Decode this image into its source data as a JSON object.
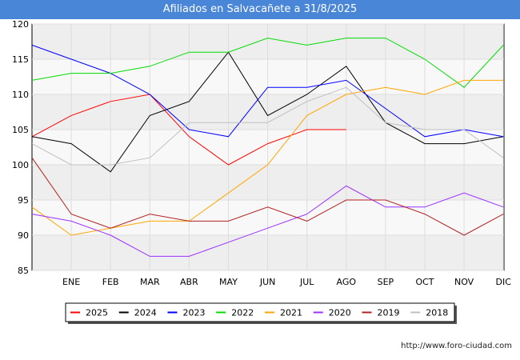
{
  "chart_data": {
    "type": "line",
    "title": "Afiliados en Salvacañete a 31/8/2025",
    "categories": [
      "",
      "ENE",
      "FEB",
      "MAR",
      "ABR",
      "MAY",
      "JUN",
      "JUL",
      "AGO",
      "SEP",
      "OCT",
      "NOV",
      "DIC"
    ],
    "ylim": [
      85,
      120
    ],
    "yticks": [
      85,
      90,
      95,
      100,
      105,
      110,
      115,
      120
    ],
    "grid": true,
    "legend_position": "bottom",
    "series": [
      {
        "name": "2025",
        "color": "#ff0000",
        "values": [
          104,
          107,
          109,
          110,
          104,
          100,
          103,
          105,
          105,
          null,
          null,
          null,
          null
        ]
      },
      {
        "name": "2024",
        "color": "#000000",
        "values": [
          104,
          103,
          99,
          107,
          109,
          116,
          107,
          110,
          114,
          106,
          103,
          103,
          104
        ]
      },
      {
        "name": "2023",
        "color": "#0000ff",
        "values": [
          117,
          115,
          113,
          110,
          105,
          104,
          111,
          111,
          112,
          108,
          104,
          105,
          104
        ]
      },
      {
        "name": "2022",
        "color": "#00dd00",
        "values": [
          112,
          113,
          113,
          114,
          116,
          116,
          118,
          117,
          118,
          118,
          115,
          111,
          117
        ]
      },
      {
        "name": "2021",
        "color": "#ffa500",
        "values": [
          94,
          90,
          91,
          92,
          92,
          96,
          100,
          107,
          110,
          111,
          110,
          112,
          112
        ]
      },
      {
        "name": "2020",
        "color": "#9b30ff",
        "values": [
          93,
          92,
          90,
          87,
          87,
          89,
          91,
          93,
          97,
          94,
          94,
          96,
          94
        ]
      },
      {
        "name": "2019",
        "color": "#b22222",
        "values": [
          101,
          93,
          91,
          93,
          92,
          92,
          94,
          92,
          95,
          95,
          93,
          90,
          93
        ]
      },
      {
        "name": "2018",
        "color": "#c0c0c0",
        "values": [
          103,
          100,
          100,
          101,
          106,
          106,
          106,
          109,
          111,
          106,
          105,
          105,
          101
        ]
      }
    ]
  },
  "footer_url": "http://www.foro-ciudad.com"
}
